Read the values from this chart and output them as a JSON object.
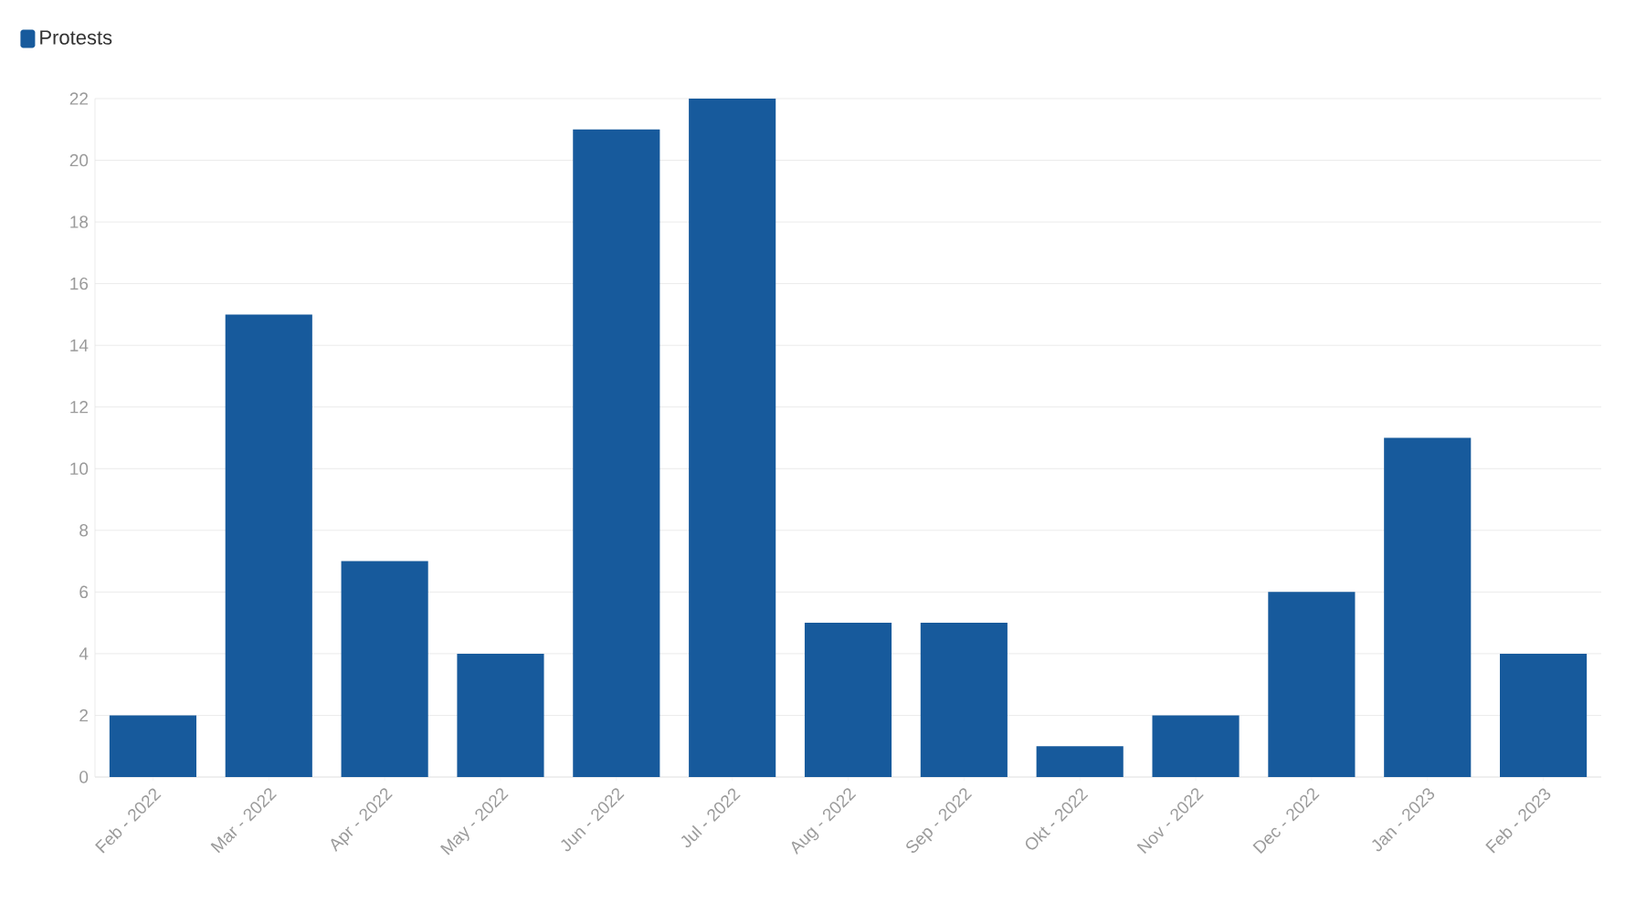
{
  "chart_data": {
    "type": "bar",
    "categories": [
      "Feb - 2022",
      "Mar - 2022",
      "Apr - 2022",
      "May - 2022",
      "Jun - 2022",
      "Jul - 2022",
      "Aug - 2022",
      "Sep - 2022",
      "Okt - 2022",
      "Nov - 2022",
      "Dec - 2022",
      "Jan - 2023",
      "Feb - 2023"
    ],
    "series": [
      {
        "name": "Protests",
        "color": "#175a9c",
        "values": [
          2,
          15,
          7,
          4,
          21,
          22,
          5,
          5,
          1,
          2,
          6,
          11,
          4
        ]
      }
    ],
    "ylim": [
      0,
      22
    ],
    "yticks": [
      0,
      2,
      4,
      6,
      8,
      10,
      12,
      14,
      16,
      18,
      20,
      22
    ],
    "grid": "y",
    "legend": "top left"
  }
}
